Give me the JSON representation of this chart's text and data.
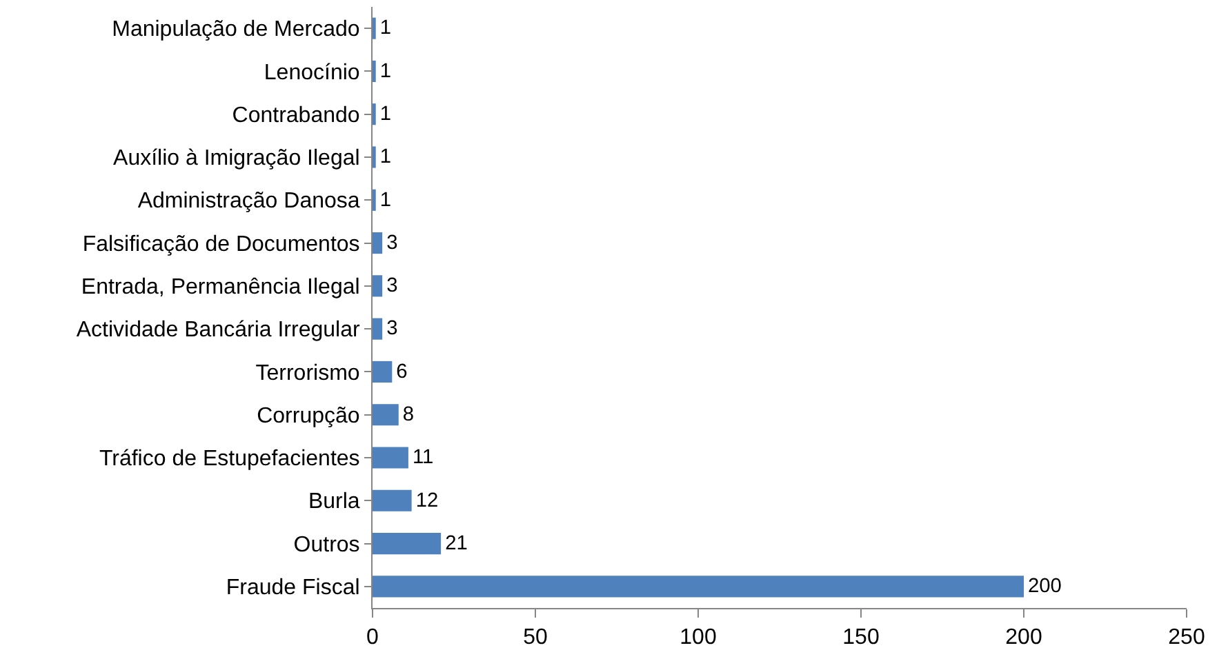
{
  "chart_data": {
    "type": "bar",
    "orientation": "horizontal",
    "categories": [
      "Manipulação de Mercado",
      "Lenocínio",
      "Contrabando",
      "Auxílio à Imigração Ilegal",
      "Administração Danosa",
      "Falsificação de Documentos",
      "Entrada, Permanência Ilegal",
      "Actividade Bancária Irregular",
      "Terrorismo",
      "Corrupção",
      "Tráfico de Estupefacientes",
      "Burla",
      "Outros",
      "Fraude Fiscal"
    ],
    "values": [
      1,
      1,
      1,
      1,
      1,
      3,
      3,
      3,
      6,
      8,
      11,
      12,
      21,
      200
    ],
    "color": "#4f81bd",
    "xlim": [
      0,
      250
    ],
    "xticks": [
      0,
      50,
      100,
      150,
      200,
      250
    ],
    "grid": false,
    "legend": false,
    "data_labels": true
  }
}
